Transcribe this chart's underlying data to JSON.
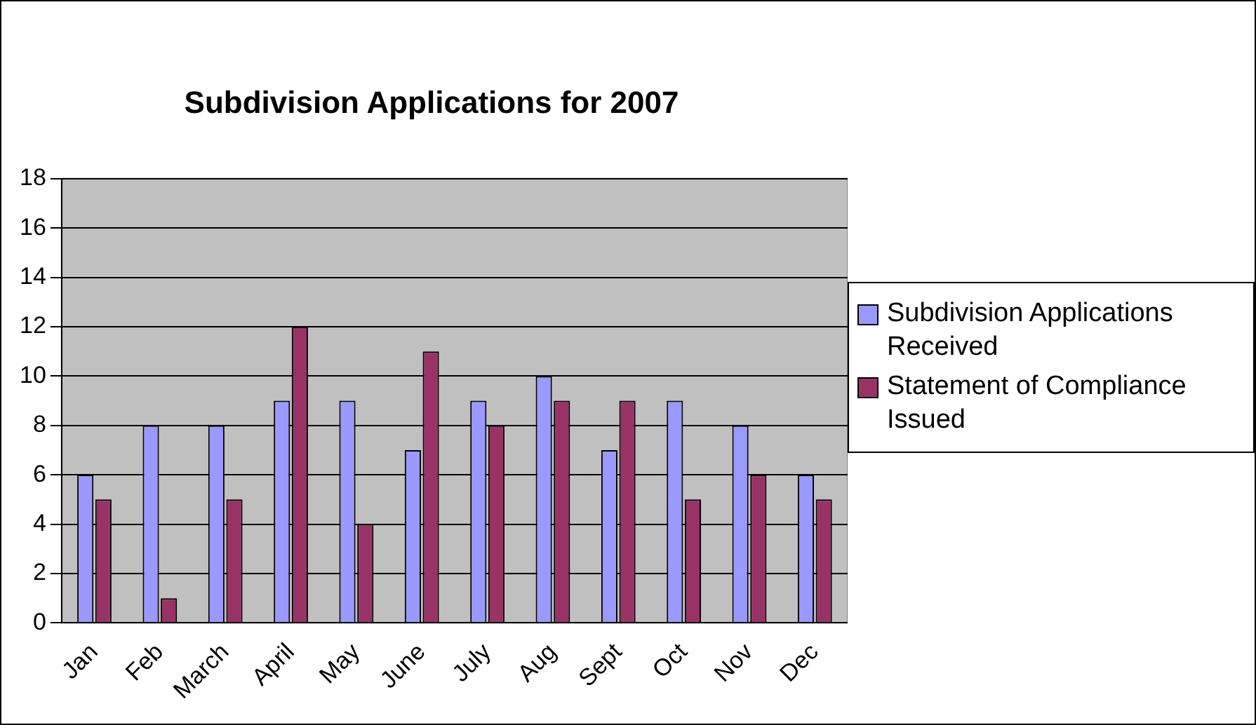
{
  "chart_data": {
    "type": "bar",
    "title": "Subdivision Applications for 2007",
    "categories": [
      "Jan",
      "Feb",
      "March",
      "April",
      "May",
      "June",
      "July",
      "Aug",
      "Sept",
      "Oct",
      "Nov",
      "Dec"
    ],
    "series": [
      {
        "name": "Subdivision Applications Received",
        "color": "#9999ff",
        "values": [
          6,
          8,
          8,
          9,
          9,
          7,
          9,
          10,
          7,
          9,
          8,
          6
        ]
      },
      {
        "name": "Statement of Compliance Issued",
        "color": "#993366",
        "values": [
          5,
          1,
          5,
          12,
          4,
          11,
          8,
          9,
          9,
          5,
          6,
          5
        ]
      }
    ],
    "ylim": [
      0,
      18
    ],
    "yticks": [
      0,
      2,
      4,
      6,
      8,
      10,
      12,
      14,
      16,
      18
    ],
    "grid": "y",
    "legend": "right"
  }
}
